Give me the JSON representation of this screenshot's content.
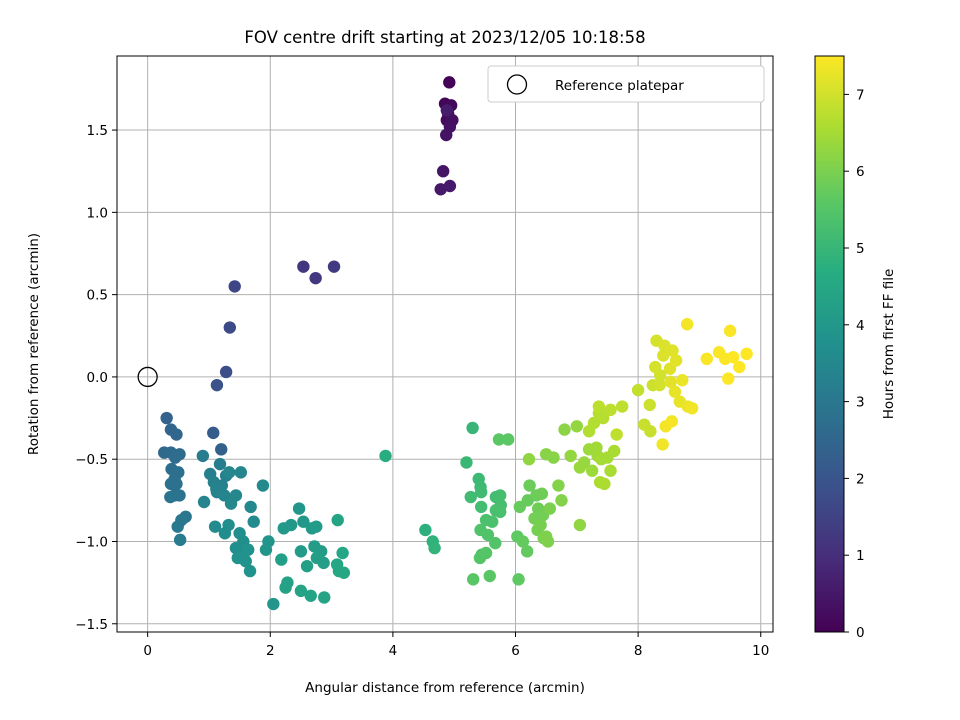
{
  "chart_data": {
    "type": "scatter",
    "title": "FOV centre drift starting at 2023/12/05 10:18:58",
    "xlabel": "Angular distance from reference (arcmin)",
    "ylabel": "Rotation from reference (arcmin)",
    "xlim": [
      -0.5,
      10.2
    ],
    "ylim": [
      -1.55,
      1.95
    ],
    "xticks": [
      0,
      2,
      4,
      6,
      8,
      10
    ],
    "yticks": [
      -1.5,
      -1.0,
      -0.5,
      0.0,
      0.5,
      1.0,
      1.5
    ],
    "grid": true,
    "legend": {
      "position": "top-right",
      "entries": [
        "Reference platepar"
      ]
    },
    "reference_point": {
      "x": 0,
      "y": 0,
      "label": "Reference platepar"
    },
    "colorbar": {
      "label": "Hours from first FF file",
      "colormap": "viridis",
      "range": [
        0,
        7.5
      ],
      "ticks": [
        0,
        1,
        2,
        3,
        4,
        5,
        6,
        7
      ]
    },
    "points": [
      [
        4.92,
        1.79,
        0.05
      ],
      [
        4.85,
        1.66,
        0.1
      ],
      [
        4.95,
        1.65,
        0.15
      ],
      [
        4.9,
        1.6,
        0.2
      ],
      [
        4.88,
        1.56,
        0.25
      ],
      [
        4.97,
        1.56,
        0.3
      ],
      [
        4.93,
        1.52,
        0.35
      ],
      [
        4.87,
        1.47,
        0.4
      ],
      [
        4.82,
        1.25,
        0.45
      ],
      [
        4.78,
        1.14,
        0.5
      ],
      [
        4.93,
        1.16,
        0.55
      ],
      [
        4.88,
        1.62,
        0.6
      ],
      [
        2.54,
        0.67,
        1.2
      ],
      [
        2.74,
        0.6,
        1.25
      ],
      [
        3.04,
        0.67,
        1.3
      ],
      [
        1.42,
        0.55,
        1.6
      ],
      [
        1.34,
        0.3,
        1.7
      ],
      [
        1.28,
        0.03,
        1.8
      ],
      [
        1.13,
        -0.05,
        1.9
      ],
      [
        1.07,
        -0.34,
        2.2
      ],
      [
        1.2,
        -0.44,
        2.3
      ],
      [
        0.31,
        -0.25,
        2.4
      ],
      [
        0.38,
        -0.32,
        2.45
      ],
      [
        0.47,
        -0.35,
        2.5
      ],
      [
        0.27,
        -0.46,
        2.55
      ],
      [
        0.38,
        -0.46,
        2.6
      ],
      [
        0.52,
        -0.47,
        2.65
      ],
      [
        0.45,
        -0.49,
        2.7
      ],
      [
        0.39,
        -0.56,
        2.72
      ],
      [
        0.5,
        -0.58,
        2.75
      ],
      [
        0.44,
        -0.62,
        2.78
      ],
      [
        0.38,
        -0.65,
        2.8
      ],
      [
        0.47,
        -0.65,
        2.82
      ],
      [
        0.44,
        -0.72,
        2.85
      ],
      [
        0.52,
        -0.72,
        2.88
      ],
      [
        0.37,
        -0.73,
        2.9
      ],
      [
        0.62,
        -0.85,
        2.95
      ],
      [
        0.55,
        -0.87,
        3.0
      ],
      [
        0.49,
        -0.91,
        3.05
      ],
      [
        0.53,
        -0.99,
        3.1
      ],
      [
        0.9,
        -0.48,
        3.15
      ],
      [
        1.18,
        -0.53,
        3.2
      ],
      [
        1.02,
        -0.59,
        3.25
      ],
      [
        1.28,
        -0.6,
        3.25
      ],
      [
        1.08,
        -0.64,
        3.3
      ],
      [
        1.21,
        -0.66,
        3.3
      ],
      [
        1.12,
        -0.68,
        3.35
      ],
      [
        1.13,
        -0.7,
        3.35
      ],
      [
        1.25,
        -0.72,
        3.4
      ],
      [
        0.92,
        -0.76,
        3.4
      ],
      [
        1.33,
        -0.58,
        3.45
      ],
      [
        1.52,
        -0.58,
        3.45
      ],
      [
        1.44,
        -0.72,
        3.5
      ],
      [
        1.36,
        -0.77,
        3.5
      ],
      [
        1.68,
        -0.79,
        3.55
      ],
      [
        1.88,
        -0.66,
        3.55
      ],
      [
        1.73,
        -0.88,
        3.6
      ],
      [
        1.1,
        -0.91,
        3.6
      ],
      [
        1.32,
        -0.9,
        3.65
      ],
      [
        1.26,
        -0.95,
        3.65
      ],
      [
        1.5,
        -0.95,
        3.7
      ],
      [
        1.44,
        -1.04,
        3.7
      ],
      [
        1.56,
        -1.0,
        3.75
      ],
      [
        1.52,
        -1.06,
        3.75
      ],
      [
        1.64,
        -1.05,
        3.8
      ],
      [
        1.47,
        -1.1,
        3.8
      ],
      [
        1.6,
        -1.12,
        3.85
      ],
      [
        1.67,
        -1.18,
        3.85
      ],
      [
        1.97,
        -1.0,
        3.9
      ],
      [
        1.93,
        -1.05,
        3.9
      ],
      [
        2.05,
        -1.38,
        3.95
      ],
      [
        2.47,
        -0.8,
        3.95
      ],
      [
        2.54,
        -0.88,
        4.0
      ],
      [
        2.34,
        -0.9,
        4.0
      ],
      [
        2.22,
        -0.92,
        4.05
      ],
      [
        2.68,
        -0.92,
        4.05
      ],
      [
        2.75,
        -0.91,
        4.1
      ],
      [
        2.5,
        -1.06,
        4.1
      ],
      [
        2.72,
        -1.03,
        4.15
      ],
      [
        2.83,
        -1.06,
        4.15
      ],
      [
        2.76,
        -1.1,
        4.2
      ],
      [
        2.87,
        -1.13,
        4.2
      ],
      [
        2.6,
        -1.15,
        4.25
      ],
      [
        2.18,
        -1.11,
        4.25
      ],
      [
        2.28,
        -1.25,
        4.3
      ],
      [
        2.25,
        -1.28,
        4.3
      ],
      [
        2.5,
        -1.3,
        4.35
      ],
      [
        2.66,
        -1.33,
        4.35
      ],
      [
        2.88,
        -1.34,
        4.4
      ],
      [
        3.1,
        -0.87,
        4.4
      ],
      [
        3.18,
        -1.07,
        4.45
      ],
      [
        3.09,
        -1.14,
        4.45
      ],
      [
        3.12,
        -1.18,
        4.5
      ],
      [
        3.2,
        -1.19,
        4.5
      ],
      [
        3.88,
        -0.48,
        4.7
      ],
      [
        4.53,
        -0.93,
        4.8
      ],
      [
        4.65,
        -1.0,
        4.85
      ],
      [
        4.68,
        -1.04,
        4.9
      ],
      [
        5.3,
        -0.31,
        5.0
      ],
      [
        5.2,
        -0.52,
        5.05
      ],
      [
        5.4,
        -0.62,
        5.1
      ],
      [
        5.43,
        -0.67,
        5.1
      ],
      [
        5.44,
        -0.7,
        5.15
      ],
      [
        5.27,
        -0.73,
        5.15
      ],
      [
        5.44,
        -0.79,
        5.2
      ],
      [
        5.68,
        -0.73,
        5.2
      ],
      [
        5.75,
        -0.72,
        5.25
      ],
      [
        5.76,
        -0.78,
        5.25
      ],
      [
        5.68,
        -0.81,
        5.3
      ],
      [
        5.75,
        -0.82,
        5.3
      ],
      [
        5.62,
        -0.88,
        5.35
      ],
      [
        5.52,
        -0.87,
        5.35
      ],
      [
        5.43,
        -0.93,
        5.4
      ],
      [
        5.55,
        -0.96,
        5.4
      ],
      [
        5.67,
        -1.01,
        5.45
      ],
      [
        5.45,
        -1.08,
        5.45
      ],
      [
        5.52,
        -1.07,
        5.5
      ],
      [
        5.42,
        -1.1,
        5.5
      ],
      [
        5.31,
        -1.23,
        5.55
      ],
      [
        5.58,
        -1.21,
        5.55
      ],
      [
        5.73,
        -0.38,
        5.6
      ],
      [
        5.88,
        -0.38,
        5.6
      ],
      [
        6.05,
        -1.23,
        5.65
      ],
      [
        6.03,
        -0.97,
        5.65
      ],
      [
        6.12,
        -1.0,
        5.7
      ],
      [
        6.19,
        -1.06,
        5.7
      ],
      [
        6.07,
        -0.79,
        5.75
      ],
      [
        6.2,
        -0.75,
        5.75
      ],
      [
        6.23,
        -0.66,
        5.8
      ],
      [
        6.34,
        -0.72,
        5.8
      ],
      [
        6.43,
        -0.71,
        5.85
      ],
      [
        6.37,
        -0.8,
        5.85
      ],
      [
        6.45,
        -0.84,
        5.9
      ],
      [
        6.31,
        -0.86,
        5.9
      ],
      [
        6.41,
        -0.9,
        5.95
      ],
      [
        6.36,
        -0.93,
        5.95
      ],
      [
        6.56,
        -0.8,
        6.0
      ],
      [
        6.46,
        -0.98,
        6.0
      ],
      [
        6.5,
        -0.97,
        6.05
      ],
      [
        6.53,
        -1.0,
        6.05
      ],
      [
        6.75,
        -0.75,
        6.1
      ],
      [
        6.7,
        -0.66,
        6.1
      ],
      [
        6.5,
        -0.47,
        6.15
      ],
      [
        6.62,
        -0.49,
        6.15
      ],
      [
        6.8,
        -0.32,
        6.2
      ],
      [
        7.05,
        -0.9,
        6.25
      ],
      [
        6.22,
        -0.5,
        6.25
      ],
      [
        6.9,
        -0.48,
        6.3
      ],
      [
        7.0,
        -0.3,
        6.3
      ],
      [
        7.05,
        -0.55,
        6.35
      ],
      [
        7.12,
        -0.52,
        6.35
      ],
      [
        7.25,
        -0.57,
        6.4
      ],
      [
        7.2,
        -0.44,
        6.4
      ],
      [
        7.32,
        -0.43,
        6.45
      ],
      [
        7.34,
        -0.48,
        6.45
      ],
      [
        7.4,
        -0.5,
        6.5
      ],
      [
        7.5,
        -0.49,
        6.5
      ],
      [
        7.61,
        -0.45,
        6.55
      ],
      [
        7.55,
        -0.57,
        6.55
      ],
      [
        7.38,
        -0.64,
        6.6
      ],
      [
        7.45,
        -0.65,
        6.6
      ],
      [
        7.2,
        -0.33,
        6.65
      ],
      [
        7.28,
        -0.28,
        6.65
      ],
      [
        7.36,
        -0.22,
        6.7
      ],
      [
        7.43,
        -0.25,
        6.7
      ],
      [
        7.36,
        -0.18,
        6.75
      ],
      [
        7.55,
        -0.2,
        6.75
      ],
      [
        7.65,
        -0.35,
        6.8
      ],
      [
        7.74,
        -0.18,
        6.8
      ],
      [
        8.0,
        -0.08,
        6.85
      ],
      [
        8.1,
        -0.29,
        6.9
      ],
      [
        8.2,
        -0.33,
        6.9
      ],
      [
        8.19,
        -0.17,
        6.95
      ],
      [
        8.24,
        -0.05,
        6.95
      ],
      [
        8.35,
        -0.05,
        7.0
      ],
      [
        8.36,
        0.01,
        7.0
      ],
      [
        8.28,
        0.06,
        7.05
      ],
      [
        8.3,
        0.22,
        7.05
      ],
      [
        8.43,
        0.19,
        7.1
      ],
      [
        8.41,
        0.13,
        7.1
      ],
      [
        8.56,
        0.16,
        7.15
      ],
      [
        8.52,
        0.05,
        7.15
      ],
      [
        8.62,
        0.1,
        7.2
      ],
      [
        8.53,
        -0.03,
        7.2
      ],
      [
        8.6,
        -0.09,
        7.25
      ],
      [
        8.68,
        -0.15,
        7.25
      ],
      [
        8.72,
        -0.02,
        7.3
      ],
      [
        8.81,
        -0.18,
        7.3
      ],
      [
        8.88,
        -0.19,
        7.35
      ],
      [
        8.4,
        -0.41,
        7.35
      ],
      [
        8.45,
        -0.3,
        7.4
      ],
      [
        8.55,
        -0.27,
        7.4
      ],
      [
        8.8,
        0.32,
        7.4
      ],
      [
        9.12,
        0.11,
        7.45
      ],
      [
        9.32,
        0.15,
        7.45
      ],
      [
        9.5,
        0.28,
        7.45
      ],
      [
        9.42,
        0.11,
        7.45
      ],
      [
        9.55,
        0.12,
        7.5
      ],
      [
        9.65,
        0.06,
        7.5
      ],
      [
        9.77,
        0.14,
        7.5
      ],
      [
        9.47,
        -0.01,
        7.5
      ]
    ]
  }
}
